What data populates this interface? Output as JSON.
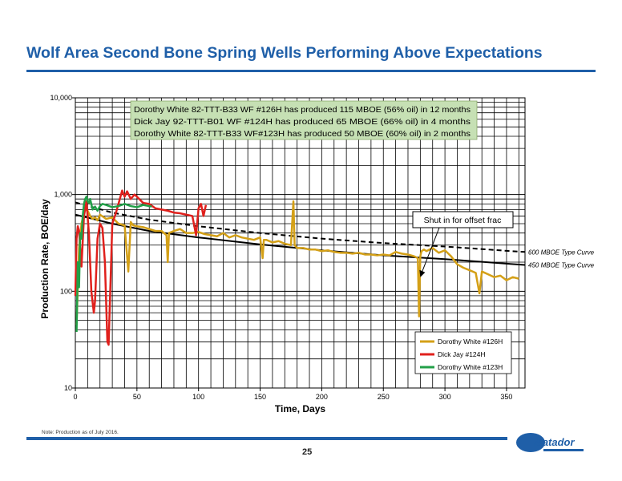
{
  "slide": {
    "title": "Wolf Area Second Bone Spring Wells Performing Above Expectations",
    "note": "Note:  Production as of July 2016.",
    "page_number": "25",
    "logo_text": "Matador",
    "accent_color": "#1f5fa8"
  },
  "chart_data": {
    "type": "line",
    "title": "",
    "xlabel": "Time, Days",
    "ylabel": "Production Rate, BOE/day",
    "xlim": [
      0,
      365
    ],
    "ylim": [
      10,
      10000
    ],
    "y_scale": "log",
    "grid": true,
    "x_ticks": [
      0,
      50,
      100,
      150,
      200,
      250,
      300,
      350
    ],
    "x_tick_labels": [
      "0",
      "50",
      "100",
      "150",
      "200",
      "250",
      "300",
      "350"
    ],
    "y_ticks": [
      10,
      100,
      1000,
      10000
    ],
    "y_tick_labels": [
      "10",
      "100",
      "1,000",
      "10,000"
    ],
    "legend_position": "bottom-right",
    "textbox": {
      "lines": [
        "Dorothy White 82-TTT-B33 WF #126H has produced 115 MBOE (56% oil) in 12 months",
        "Dick Jay 92-TTT-B01 WF #124H has produced 65 MBOE (66% oil) in 4 months",
        "Dorothy White 82-TTT-B33 WF#123H has produced 50 MBOE (60% oil) in 2 months"
      ],
      "fill": "#c6e0b4"
    },
    "annotation": {
      "text": "Shut in for offset frac",
      "x": 280,
      "y": 140
    },
    "type_curves": [
      {
        "name": "600 MBOE Type Curve",
        "style": "dashed",
        "color": "#000000",
        "x": [
          0,
          30,
          60,
          100,
          150,
          200,
          250,
          300,
          350,
          365
        ],
        "y": [
          830,
          650,
          550,
          470,
          400,
          350,
          315,
          290,
          262,
          255
        ]
      },
      {
        "name": "450 MBOE Type Curve",
        "style": "solid",
        "color": "#000000",
        "x": [
          0,
          30,
          60,
          100,
          150,
          200,
          250,
          300,
          350,
          365
        ],
        "y": [
          620,
          500,
          420,
          360,
          305,
          265,
          235,
          215,
          193,
          187
        ]
      }
    ],
    "series": [
      {
        "name": "Dorothy White #126H",
        "color": "#d4a017",
        "x": [
          1,
          3,
          5,
          7,
          8,
          10,
          12,
          14,
          16,
          18,
          20,
          25,
          30,
          35,
          40,
          43,
          45,
          47,
          50,
          55,
          60,
          65,
          70,
          74,
          75,
          76,
          80,
          85,
          90,
          95,
          100,
          105,
          110,
          115,
          120,
          125,
          130,
          135,
          140,
          145,
          150,
          152,
          153,
          155,
          160,
          165,
          170,
          175,
          177,
          178,
          180,
          185,
          190,
          195,
          200,
          205,
          210,
          215,
          220,
          225,
          230,
          235,
          240,
          245,
          250,
          255,
          260,
          265,
          270,
          275,
          278,
          279,
          280,
          281,
          283,
          285,
          290,
          295,
          300,
          305,
          310,
          315,
          320,
          325,
          328,
          330,
          335,
          340,
          345,
          350,
          355,
          360
        ],
        "y": [
          45,
          280,
          500,
          650,
          700,
          680,
          600,
          560,
          580,
          540,
          620,
          560,
          580,
          500,
          480,
          160,
          520,
          480,
          470,
          460,
          440,
          420,
          420,
          380,
          200,
          400,
          420,
          440,
          400,
          400,
          410,
          390,
          380,
          370,
          400,
          360,
          380,
          360,
          350,
          340,
          360,
          220,
          340,
          340,
          320,
          330,
          310,
          300,
          850,
          300,
          280,
          280,
          270,
          270,
          260,
          265,
          255,
          250,
          250,
          245,
          250,
          240,
          240,
          235,
          240,
          235,
          255,
          245,
          240,
          230,
          220,
          55,
          230,
          260,
          270,
          260,
          280,
          250,
          265,
          230,
          190,
          175,
          165,
          155,
          95,
          160,
          150,
          140,
          145,
          130,
          140,
          135
        ]
      },
      {
        "name": "Dick Jay #124H",
        "color": "#e0201c",
        "x": [
          0,
          1,
          2,
          3,
          5,
          7,
          9,
          11,
          13,
          15,
          16,
          18,
          20,
          22,
          24,
          26,
          27,
          30,
          33,
          35,
          38,
          40,
          42,
          45,
          48,
          50,
          55,
          60,
          65,
          70,
          75,
          80,
          85,
          90,
          95,
          98,
          100,
          102,
          104,
          106
        ],
        "y": [
          90,
          350,
          470,
          420,
          180,
          600,
          850,
          400,
          100,
          60,
          80,
          350,
          500,
          450,
          200,
          30,
          28,
          500,
          650,
          800,
          1100,
          950,
          1080,
          900,
          1000,
          950,
          820,
          800,
          720,
          700,
          680,
          650,
          640,
          620,
          600,
          380,
          720,
          800,
          600,
          780
        ]
      },
      {
        "name": "Dorothy White #123H",
        "color": "#22a048",
        "x": [
          1,
          2,
          3,
          4,
          5,
          6,
          7,
          8,
          9,
          10,
          11,
          12,
          14,
          16,
          18,
          20,
          22,
          25,
          30,
          35,
          40,
          45,
          50,
          55,
          60,
          62
        ],
        "y": [
          38,
          200,
          110,
          400,
          350,
          600,
          800,
          900,
          950,
          850,
          820,
          900,
          700,
          750,
          680,
          760,
          800,
          780,
          740,
          760,
          800,
          760,
          740,
          780,
          760,
          750
        ]
      }
    ]
  }
}
